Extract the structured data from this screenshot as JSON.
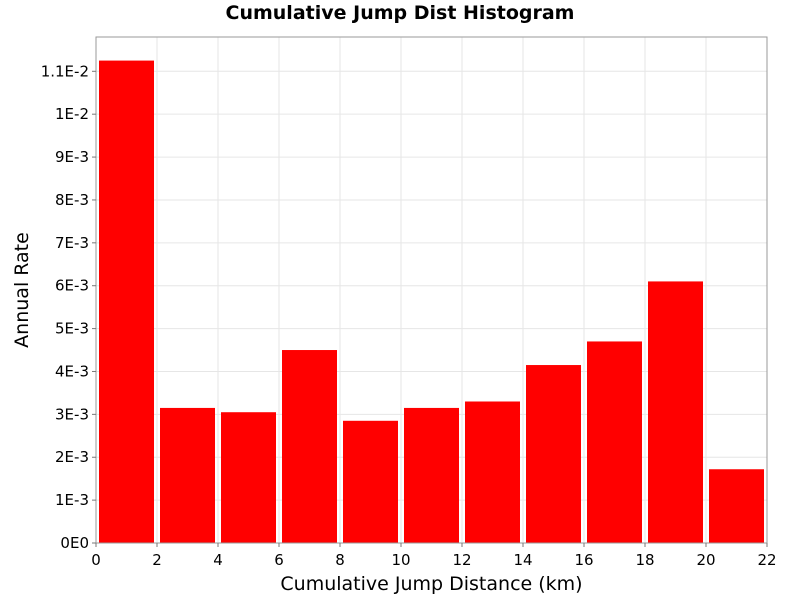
{
  "chart_data": {
    "type": "bar",
    "title": "Cumulative Jump Dist Histogram",
    "xlabel": "Cumulative Jump Distance (km)",
    "ylabel": "Annual Rate",
    "xlim": [
      0,
      22
    ],
    "ylim": [
      0,
      0.0118
    ],
    "bin_width": 2,
    "x": [
      1,
      3,
      5,
      7,
      9,
      11,
      13,
      15,
      17,
      19,
      21
    ],
    "values": [
      0.01125,
      0.00315,
      0.00305,
      0.0045,
      0.00285,
      0.00315,
      0.0033,
      0.00415,
      0.0047,
      0.0061,
      0.00172
    ],
    "x_ticks": [
      0,
      2,
      4,
      6,
      8,
      10,
      12,
      14,
      16,
      18,
      20,
      22
    ],
    "x_tick_labels": [
      "0",
      "2",
      "4",
      "6",
      "8",
      "10",
      "12",
      "14",
      "16",
      "18",
      "20",
      "22"
    ],
    "y_ticks": [
      0,
      0.001,
      0.002,
      0.003,
      0.004,
      0.005,
      0.006,
      0.007,
      0.008,
      0.009,
      0.01,
      0.011
    ],
    "y_tick_labels": [
      "0E0",
      "1E-3",
      "2E-3",
      "3E-3",
      "4E-3",
      "5E-3",
      "6E-3",
      "7E-3",
      "8E-3",
      "9E-3",
      "1E-2",
      "1.1E-2"
    ],
    "grid": true,
    "legend": "none",
    "colors": {
      "bar": "#ff0000",
      "grid": "#e6e6e6",
      "frame": "#999999"
    }
  }
}
